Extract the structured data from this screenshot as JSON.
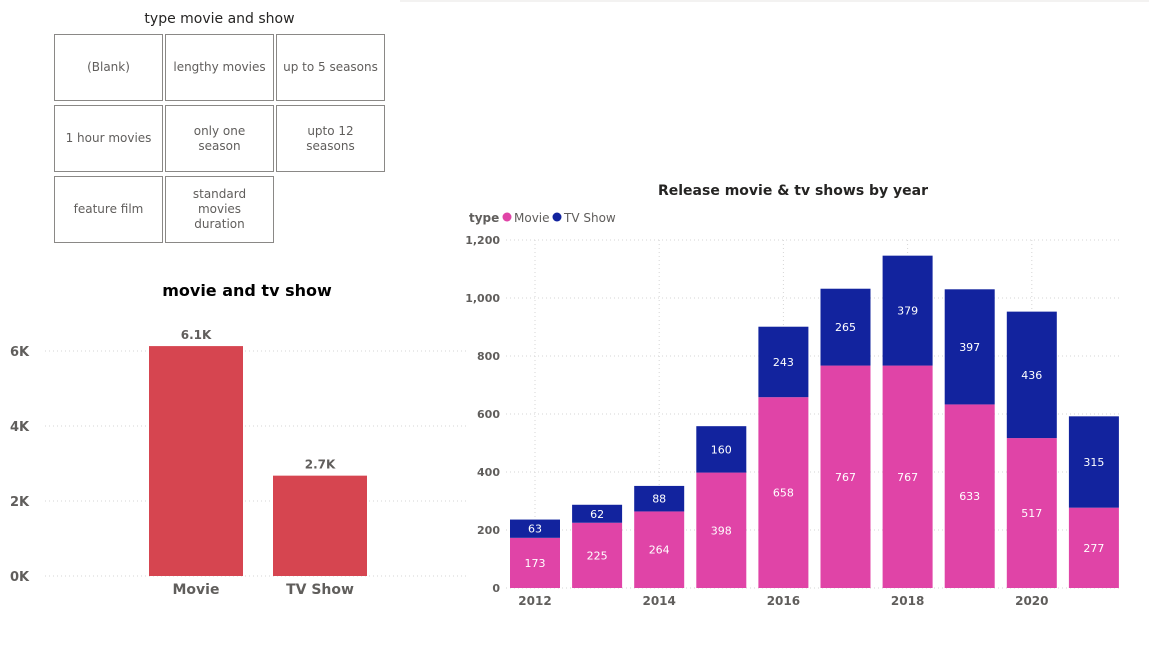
{
  "slicer": {
    "title": "type movie and show",
    "items": [
      "(Blank)",
      "lengthy movies",
      "up to 5 seasons",
      "1 hour movies",
      "only one season",
      "upto 12 seasons",
      "feature film",
      "standard movies duration"
    ]
  },
  "chart_data": [
    {
      "type": "bar",
      "title": "movie and tv show",
      "categories": [
        "Movie",
        "TV Show"
      ],
      "values": [
        6131,
        2676
      ],
      "data_labels": [
        "6.1K",
        "2.7K"
      ],
      "yticks": [
        "0K",
        "2K",
        "4K",
        "6K"
      ],
      "ylim": [
        0,
        6000
      ],
      "color": "#d64550",
      "grid": true
    },
    {
      "type": "bar",
      "stacked": true,
      "title": "Release movie & tv shows by year",
      "legend_title": "type",
      "legend_position": "top-left",
      "x": [
        2012,
        2013,
        2014,
        2015,
        2016,
        2017,
        2018,
        2019,
        2020,
        2021
      ],
      "xticks": [
        "2012",
        "2014",
        "2016",
        "2018",
        "2020"
      ],
      "yticks": [
        "0",
        "200",
        "400",
        "600",
        "800",
        "1,000",
        "1,200"
      ],
      "ylim": [
        0,
        1200
      ],
      "grid": true,
      "series": [
        {
          "name": "Movie",
          "color": "#e044a7",
          "values": [
            173,
            225,
            264,
            398,
            658,
            767,
            767,
            633,
            517,
            277
          ]
        },
        {
          "name": "TV Show",
          "color": "#12239e",
          "values": [
            63,
            62,
            88,
            160,
            243,
            265,
            379,
            397,
            436,
            315
          ]
        }
      ]
    }
  ]
}
